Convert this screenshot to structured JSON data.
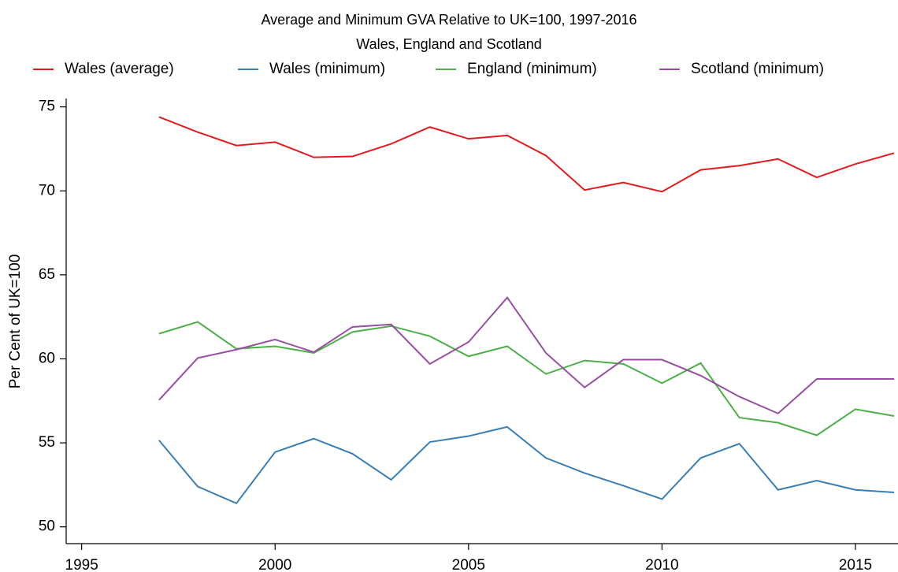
{
  "chart_data": {
    "type": "line",
    "title": "Average and Minimum GVA Relative to UK=100, 1997-2016",
    "subtitle": "Wales, England and Scotland",
    "y_label": "Per Cent of UK=100",
    "x": [
      1997,
      1998,
      1999,
      2000,
      2001,
      2002,
      2003,
      2004,
      2005,
      2006,
      2007,
      2008,
      2009,
      2010,
      2011,
      2012,
      2013,
      2014,
      2015,
      2016
    ],
    "series": [
      {
        "name": "Wales (average)",
        "color": "#e41a1c",
        "values": [
          74.4,
          73.5,
          72.7,
          72.9,
          72.0,
          72.05,
          72.8,
          73.8,
          73.1,
          73.3,
          72.1,
          70.05,
          70.5,
          69.95,
          71.25,
          71.5,
          71.9,
          70.8,
          71.6,
          72.25
        ]
      },
      {
        "name": "Wales (minimum)",
        "color": "#377eb8",
        "values": [
          55.15,
          52.4,
          51.4,
          54.45,
          55.25,
          54.35,
          52.8,
          55.05,
          55.4,
          55.95,
          54.1,
          53.2,
          52.45,
          51.65,
          54.1,
          54.95,
          52.2,
          52.75,
          52.2,
          52.05
        ]
      },
      {
        "name": "England (minimum)",
        "color": "#4daf4a",
        "values": [
          61.5,
          62.2,
          60.6,
          60.75,
          60.35,
          61.6,
          61.95,
          61.35,
          60.15,
          60.75,
          59.1,
          59.9,
          59.7,
          58.55,
          59.75,
          56.5,
          56.2,
          55.45,
          57.0,
          56.6
        ]
      },
      {
        "name": "Scotland (minimum)",
        "color": "#984ea3",
        "values": [
          57.55,
          60.05,
          60.55,
          61.15,
          60.4,
          61.9,
          62.05,
          59.7,
          61.0,
          63.65,
          60.35,
          58.3,
          59.95,
          59.95,
          59.0,
          57.75,
          56.75,
          58.8,
          58.8,
          58.8
        ]
      }
    ],
    "xlim": [
      1994.6,
      2016.1
    ],
    "xticks": [
      1995,
      2000,
      2005,
      2010,
      2015
    ],
    "ylim": [
      49,
      75.5
    ],
    "yticks": [
      50,
      55,
      60,
      65,
      70,
      75
    ],
    "legend": "top"
  }
}
